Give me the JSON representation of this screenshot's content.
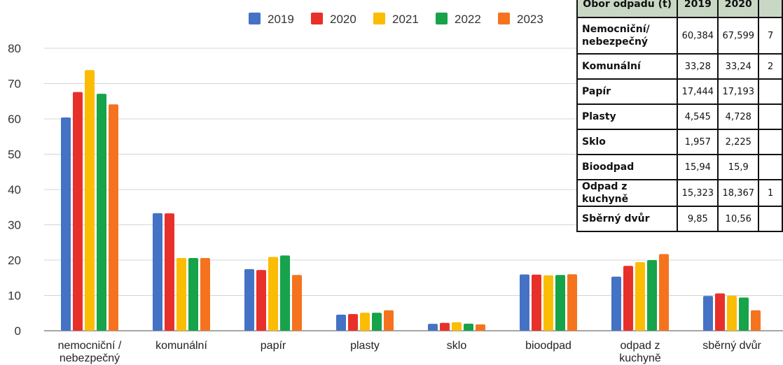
{
  "chart_data": {
    "type": "bar",
    "categories": [
      "nemocniční / nebezpečný",
      "komunální",
      "papír",
      "plasty",
      "sklo",
      "bioodpad",
      "odpad z kuchyně",
      "sběrný dvůr"
    ],
    "series": [
      {
        "name": "2019",
        "color": "#4472c4",
        "values": [
          60.384,
          33.28,
          17.444,
          4.545,
          1.957,
          15.94,
          15.323,
          9.85
        ]
      },
      {
        "name": "2020",
        "color": "#e8302a",
        "values": [
          67.599,
          33.24,
          17.193,
          4.728,
          2.225,
          15.9,
          18.367,
          10.56
        ]
      },
      {
        "name": "2021",
        "color": "#fbbc04",
        "values": [
          73.8,
          20.6,
          20.9,
          5.1,
          2.4,
          15.7,
          19.4,
          9.9
        ]
      },
      {
        "name": "2022",
        "color": "#16a34a",
        "values": [
          67.1,
          20.6,
          21.3,
          5.1,
          2.0,
          15.8,
          20.0,
          9.4
        ]
      },
      {
        "name": "2023",
        "color": "#f5731f",
        "values": [
          64.1,
          20.6,
          15.8,
          5.8,
          1.8,
          16.0,
          21.7,
          5.8
        ]
      }
    ],
    "yticks": [
      0,
      10,
      20,
      30,
      40,
      50,
      60,
      70,
      80
    ],
    "ylim": [
      0,
      80
    ],
    "grid": true,
    "legend": "top"
  },
  "table": {
    "header": [
      "Obor odpadu (t)",
      "2019",
      "2020",
      ""
    ],
    "rows": [
      {
        "name": "Nemocniční/ nebezpečný",
        "v2019": "60,384",
        "v2020": "67,599",
        "next": "7"
      },
      {
        "name": "Komunální",
        "v2019": "33,28",
        "v2020": "33,24",
        "next": "2"
      },
      {
        "name": "Papír",
        "v2019": "17,444",
        "v2020": "17,193",
        "next": ""
      },
      {
        "name": "Plasty",
        "v2019": "4,545",
        "v2020": "4,728",
        "next": ""
      },
      {
        "name": "Sklo",
        "v2019": "1,957",
        "v2020": "2,225",
        "next": ""
      },
      {
        "name": "Bioodpad",
        "v2019": "15,94",
        "v2020": "15,9",
        "next": ""
      },
      {
        "name": "Odpad z kuchyně",
        "v2019": "15,323",
        "v2020": "18,367",
        "next": "1"
      },
      {
        "name": "Sběrný dvůr",
        "v2019": "9,85",
        "v2020": "10,56",
        "next": ""
      }
    ]
  }
}
